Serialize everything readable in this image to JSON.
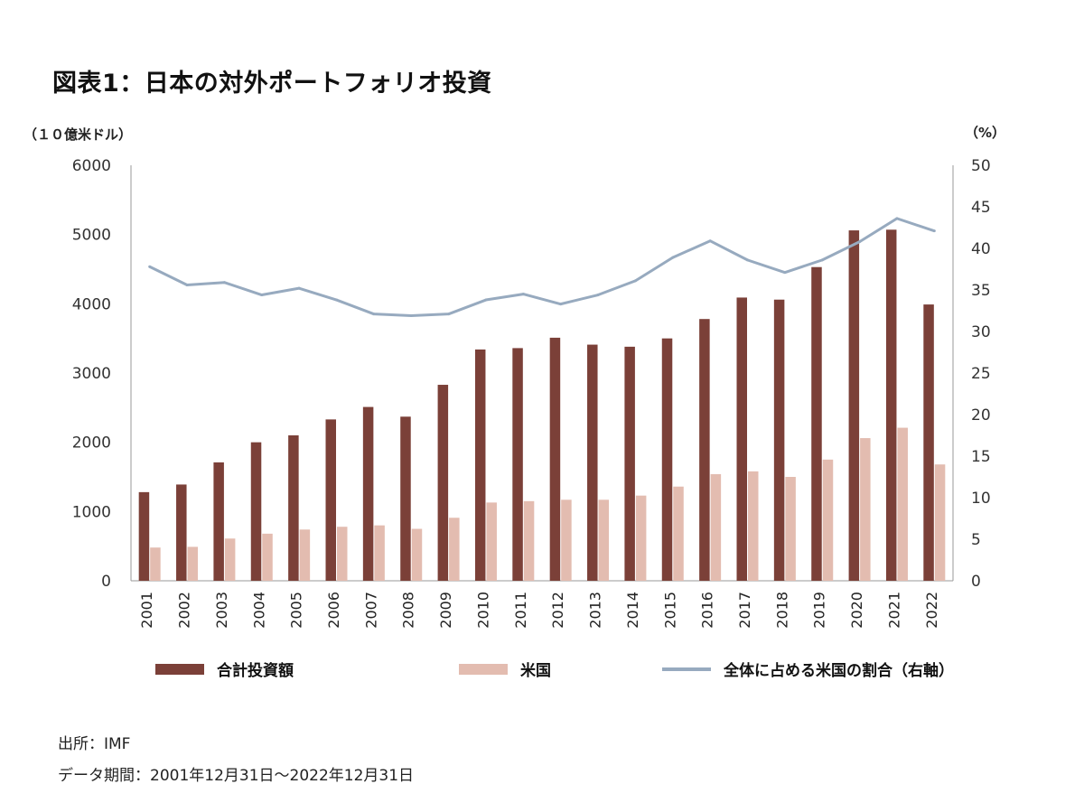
{
  "title": "図表1：日本の対外ポートフォリオ投資",
  "axis_units": {
    "left": "（１０億米ドル）",
    "right": "（%）"
  },
  "footnotes": {
    "source": "出所：IMF",
    "period": "データ期間：2001年12月31日〜2022年12月31日"
  },
  "colors": {
    "total": "#7b4038",
    "us": "#e3bcb0",
    "share": "#97aabf",
    "axis": "#999999"
  },
  "chart_data": {
    "type": "bar+line",
    "title": "図表1：日本の対外ポートフォリオ投資",
    "categories": [
      "2001",
      "2002",
      "2003",
      "2004",
      "2005",
      "2006",
      "2007",
      "2008",
      "2009",
      "2010",
      "2011",
      "2012",
      "2013",
      "2014",
      "2015",
      "2016",
      "2017",
      "2018",
      "2019",
      "2020",
      "2021",
      "2022"
    ],
    "series": [
      {
        "name": "合計投資額",
        "type": "bar",
        "axis": "left",
        "values": [
          1280,
          1390,
          1710,
          2000,
          2100,
          2330,
          2510,
          2370,
          2830,
          3340,
          3360,
          3510,
          3410,
          3380,
          3500,
          3780,
          4090,
          4060,
          4530,
          5060,
          5070,
          3990
        ]
      },
      {
        "name": "米国",
        "type": "bar",
        "axis": "left",
        "values": [
          480,
          490,
          610,
          680,
          740,
          780,
          800,
          750,
          910,
          1130,
          1150,
          1170,
          1170,
          1230,
          1360,
          1540,
          1580,
          1500,
          1750,
          2060,
          2210,
          1680
        ]
      },
      {
        "name": "全体に占める米国の割合（右軸）",
        "type": "line",
        "axis": "right",
        "values": [
          37.8,
          35.6,
          35.9,
          34.4,
          35.2,
          33.8,
          32.1,
          31.9,
          32.1,
          33.8,
          34.5,
          33.3,
          34.4,
          36.1,
          38.9,
          40.9,
          38.6,
          37.1,
          38.6,
          40.8,
          43.6,
          42.1
        ]
      }
    ],
    "y_left": {
      "min": 0,
      "max": 6000,
      "ticks": [
        0,
        1000,
        2000,
        3000,
        4000,
        5000,
        6000
      ]
    },
    "y_right": {
      "min": 0,
      "max": 50,
      "ticks": [
        0,
        5,
        10,
        15,
        20,
        25,
        30,
        35,
        40,
        45,
        50
      ]
    },
    "legend_position": "bottom"
  }
}
